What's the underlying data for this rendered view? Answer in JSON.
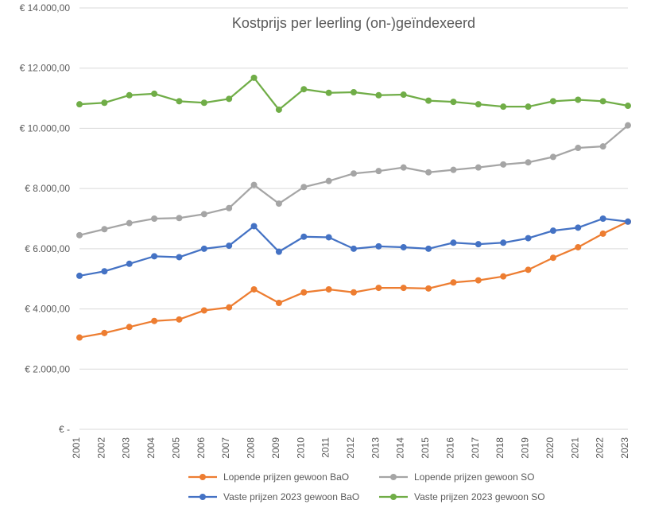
{
  "chart": {
    "type": "line",
    "title": "Kostprijs per leerling (on-)geïndexeerd",
    "title_fontsize": 18,
    "background_color": "#ffffff",
    "grid_color": "#d9d9d9",
    "years": [
      2001,
      2002,
      2003,
      2004,
      2005,
      2006,
      2007,
      2008,
      2009,
      2010,
      2011,
      2012,
      2013,
      2014,
      2015,
      2016,
      2017,
      2018,
      2019,
      2020,
      2021,
      2022,
      2023
    ],
    "y_ticks": [
      0,
      2000,
      4000,
      6000,
      8000,
      10000,
      12000,
      14000
    ],
    "y_tick_labels": [
      "€ -",
      "€ 2.000,00",
      "€ 4.000,00",
      "€ 6.000,00",
      "€ 8.000,00",
      "€ 10.000,00",
      "€ 12.000,00",
      "€ 14.000,00"
    ],
    "ylim": [
      0,
      14000
    ],
    "line_width": 2.25,
    "marker_radius": 4,
    "label_fontsize": 12,
    "series": [
      {
        "name": "Lopende prijzen gewoon BaO",
        "color": "#ed7d31",
        "values": [
          3050,
          3200,
          3400,
          3600,
          3650,
          3950,
          4050,
          4650,
          4200,
          4550,
          4650,
          4550,
          4700,
          4700,
          4680,
          4880,
          4950,
          5080,
          5300,
          5700,
          6050,
          6500,
          6900
        ]
      },
      {
        "name": "Lopende prijzen gewoon SO",
        "color": "#a5a5a5",
        "values": [
          6450,
          6650,
          6850,
          7000,
          7020,
          7150,
          7350,
          8120,
          7500,
          8050,
          8250,
          8500,
          8580,
          8700,
          8540,
          8620,
          8700,
          8800,
          8870,
          9050,
          9350,
          9400,
          10100
        ]
      },
      {
        "name": "Vaste prijzen 2023 gewoon BaO",
        "color": "#4472c4",
        "values": [
          5100,
          5250,
          5500,
          5750,
          5720,
          6000,
          6100,
          6750,
          5900,
          6400,
          6380,
          6000,
          6080,
          6050,
          6000,
          6200,
          6150,
          6200,
          6350,
          6600,
          6700,
          7000,
          6900
        ]
      },
      {
        "name": "Vaste prijzen 2023 gewoon SO",
        "color": "#70ad47",
        "values": [
          10800,
          10850,
          11100,
          11150,
          10900,
          10850,
          10980,
          11680,
          10620,
          11300,
          11180,
          11200,
          11100,
          11120,
          10920,
          10880,
          10800,
          10720,
          10720,
          10900,
          10950,
          10900,
          10750
        ]
      }
    ],
    "legend": {
      "row1": [
        "Lopende prijzen gewoon BaO",
        "Lopende prijzen gewoon SO"
      ],
      "row2": [
        "Vaste prijzen 2023 gewoon BaO",
        "Vaste prijzen 2023 gewoon SO"
      ]
    }
  }
}
